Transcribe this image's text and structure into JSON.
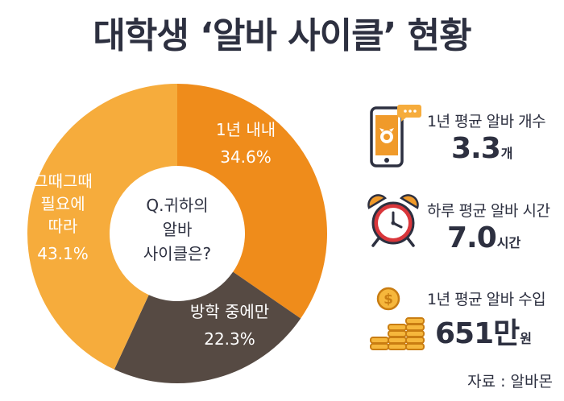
{
  "title": "대학생 ‘알바 사이클’ 현황",
  "chart_data": {
    "type": "pie",
    "center_label": [
      "Q.귀하의",
      "알바",
      "사이클은?"
    ],
    "categories": [
      "1년 내내",
      "방학 중에만",
      "그때그때 필요에 따라"
    ],
    "category_lines": [
      [
        "1년 내내"
      ],
      [
        "방학 중에만"
      ],
      [
        "그때그때",
        "필요에",
        "따라"
      ]
    ],
    "values": [
      34.6,
      22.3,
      43.1
    ],
    "value_labels": [
      "34.6%",
      "22.3%",
      "43.1%"
    ],
    "colors": [
      "#ef8c1b",
      "#564a43",
      "#f6ac3c"
    ]
  },
  "stats": [
    {
      "label": "1년 평균 알바 개수",
      "value": "3.3",
      "unit": "개",
      "icon": "smartphone-icon"
    },
    {
      "label": "하루 평균 알바 시간",
      "value": "7.0",
      "unit": "시간",
      "icon": "alarm-clock-icon"
    },
    {
      "label": "1년 평균 알바 수입",
      "value": "651만",
      "unit": "원",
      "icon": "coins-icon"
    }
  ],
  "source": "자료 : 알바몬"
}
